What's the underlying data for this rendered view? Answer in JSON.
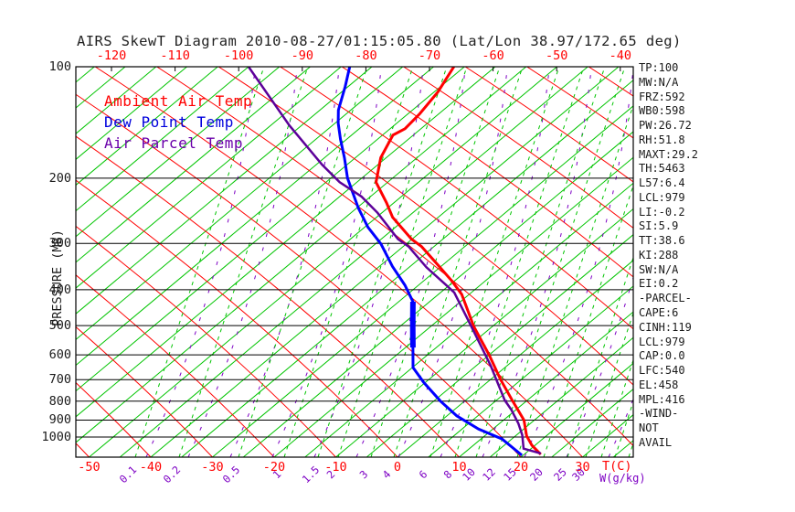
{
  "title": "AIRS SkewT Diagram 2010-08-27/01:15:05.80 (Lat/Lon 38.97/172.65 deg)",
  "legend": {
    "items": [
      {
        "label": "Ambient Air Temp",
        "color": "#ff0000"
      },
      {
        "label": "Dew Point Temp",
        "color": "#0000dd"
      },
      {
        "label": "Air Parcel Temp",
        "color": "#6a00aa"
      }
    ]
  },
  "axes": {
    "pressure_axis_label": "PRESSURE (MB)",
    "pressure_ticks": [
      100,
      200,
      300,
      400,
      500,
      600,
      700,
      800,
      900,
      1000
    ],
    "top_temperature_ticks": [
      -120,
      -110,
      -100,
      -90,
      -80,
      -70,
      -60,
      -50,
      -40
    ],
    "bottom_temperature_ticks": [
      -50,
      -40,
      -30,
      -20,
      -10,
      0,
      10,
      20,
      30
    ],
    "temperature_unit_label": "T(C)",
    "mixing_ratio_ticks": [
      "0.1",
      "0.2",
      "0.5",
      "1",
      "1.5",
      "2",
      "3",
      "4",
      "6",
      "8",
      "10",
      "12",
      "15",
      "20",
      "25",
      "30"
    ],
    "mixing_ratio_unit_label": "W(g/kg)"
  },
  "stats_panel": {
    "lines": [
      "TP:100",
      "MW:N/A",
      "FRZ:592",
      "WB0:598",
      "PW:26.72",
      "RH:51.8",
      "MAXT:29.2",
      "TH:5463",
      "L57:6.4",
      "LCL:979",
      "LI:-0.2",
      "SI:5.9",
      "TT:38.6",
      "KI:288",
      "SW:N/A",
      "EI:0.2",
      "-PARCEL-",
      "CAPE:6",
      "CINH:119",
      "LCL:979",
      "CAP:0.0",
      "LFC:540",
      "EL:458",
      "MPL:416",
      "-WIND-",
      "NOT",
      "AVAIL"
    ]
  },
  "chart_data": {
    "type": "line",
    "title": "AIRS SkewT Diagram 2010-08-27/01:15:05.80 (Lat/Lon 38.97/172.65 deg)",
    "x_axis": {
      "label": "T(C)",
      "skewed": true,
      "bottom_tick_range": [
        -50,
        30
      ],
      "top_tick_range": [
        -120,
        -40
      ]
    },
    "y_axis": {
      "label": "PRESSURE (MB)",
      "scale": "log",
      "range": [
        100,
        1130
      ]
    },
    "grid": {
      "isobars_mb": [
        100,
        200,
        300,
        400,
        500,
        600,
        700,
        800,
        900,
        1000
      ],
      "isotherm_step_c": 5,
      "isotherm_color": "#00c400",
      "dry_adiabat_color": "#ff0000",
      "mixing_ratio_color": "#00c400",
      "moist_adiabat_color": "#7d00c4"
    },
    "series": [
      {
        "name": "Ambient Air Temp",
        "color": "#ff0000",
        "width": 3,
        "points": [
          [
            100,
            -66.7
          ],
          [
            117,
            -64.4
          ],
          [
            134,
            -63.1
          ],
          [
            147,
            -62.6
          ],
          [
            153,
            -63.3
          ],
          [
            176,
            -60.9
          ],
          [
            205,
            -56.9
          ],
          [
            233,
            -51.2
          ],
          [
            255,
            -47.4
          ],
          [
            292,
            -40.1
          ],
          [
            306,
            -37.0
          ],
          [
            341,
            -31.1
          ],
          [
            379,
            -25.4
          ],
          [
            412,
            -21.2
          ],
          [
            503,
            -13.0
          ],
          [
            603,
            -4.8
          ],
          [
            699,
            1.6
          ],
          [
            800,
            7.8
          ],
          [
            900,
            13.3
          ],
          [
            993,
            16.8
          ],
          [
            1053,
            19.5
          ],
          [
            1114,
            22.7
          ]
        ]
      },
      {
        "name": "Dew Point Temp",
        "color": "#0000ff",
        "width": 3,
        "thick_segment": [
          425,
          585
        ],
        "points": [
          [
            100,
            -83.6
          ],
          [
            113,
            -80.5
          ],
          [
            131,
            -77.0
          ],
          [
            142,
            -74.5
          ],
          [
            157,
            -71.0
          ],
          [
            176,
            -66.8
          ],
          [
            200,
            -62.3
          ],
          [
            241,
            -54.7
          ],
          [
            271,
            -49.5
          ],
          [
            301,
            -44.1
          ],
          [
            346,
            -37.9
          ],
          [
            389,
            -32.2
          ],
          [
            431,
            -27.7
          ],
          [
            503,
            -22.9
          ],
          [
            573,
            -18.8
          ],
          [
            649,
            -14.9
          ],
          [
            713,
            -10.2
          ],
          [
            800,
            -3.9
          ],
          [
            877,
            1.6
          ],
          [
            952,
            7.7
          ],
          [
            1012,
            13.4
          ],
          [
            1080,
            17.5
          ],
          [
            1120,
            19.8
          ]
        ]
      },
      {
        "name": "Air Parcel Temp",
        "color": "#5c0099",
        "width": 2.5,
        "points": [
          [
            100,
            -100.0
          ],
          [
            144,
            -82.0
          ],
          [
            184,
            -69.0
          ],
          [
            205,
            -62.8
          ],
          [
            224,
            -56.5
          ],
          [
            248,
            -50.7
          ],
          [
            292,
            -42.3
          ],
          [
            306,
            -39.1
          ],
          [
            348,
            -32.2
          ],
          [
            389,
            -25.5
          ],
          [
            407,
            -22.8
          ],
          [
            511,
            -12.7
          ],
          [
            641,
            -2.7
          ],
          [
            719,
            2.1
          ],
          [
            795,
            6.3
          ],
          [
            845,
            9.3
          ],
          [
            918,
            13.0
          ],
          [
            987,
            15.9
          ],
          [
            1075,
            18.8
          ],
          [
            1107,
            22.5
          ]
        ]
      }
    ]
  }
}
